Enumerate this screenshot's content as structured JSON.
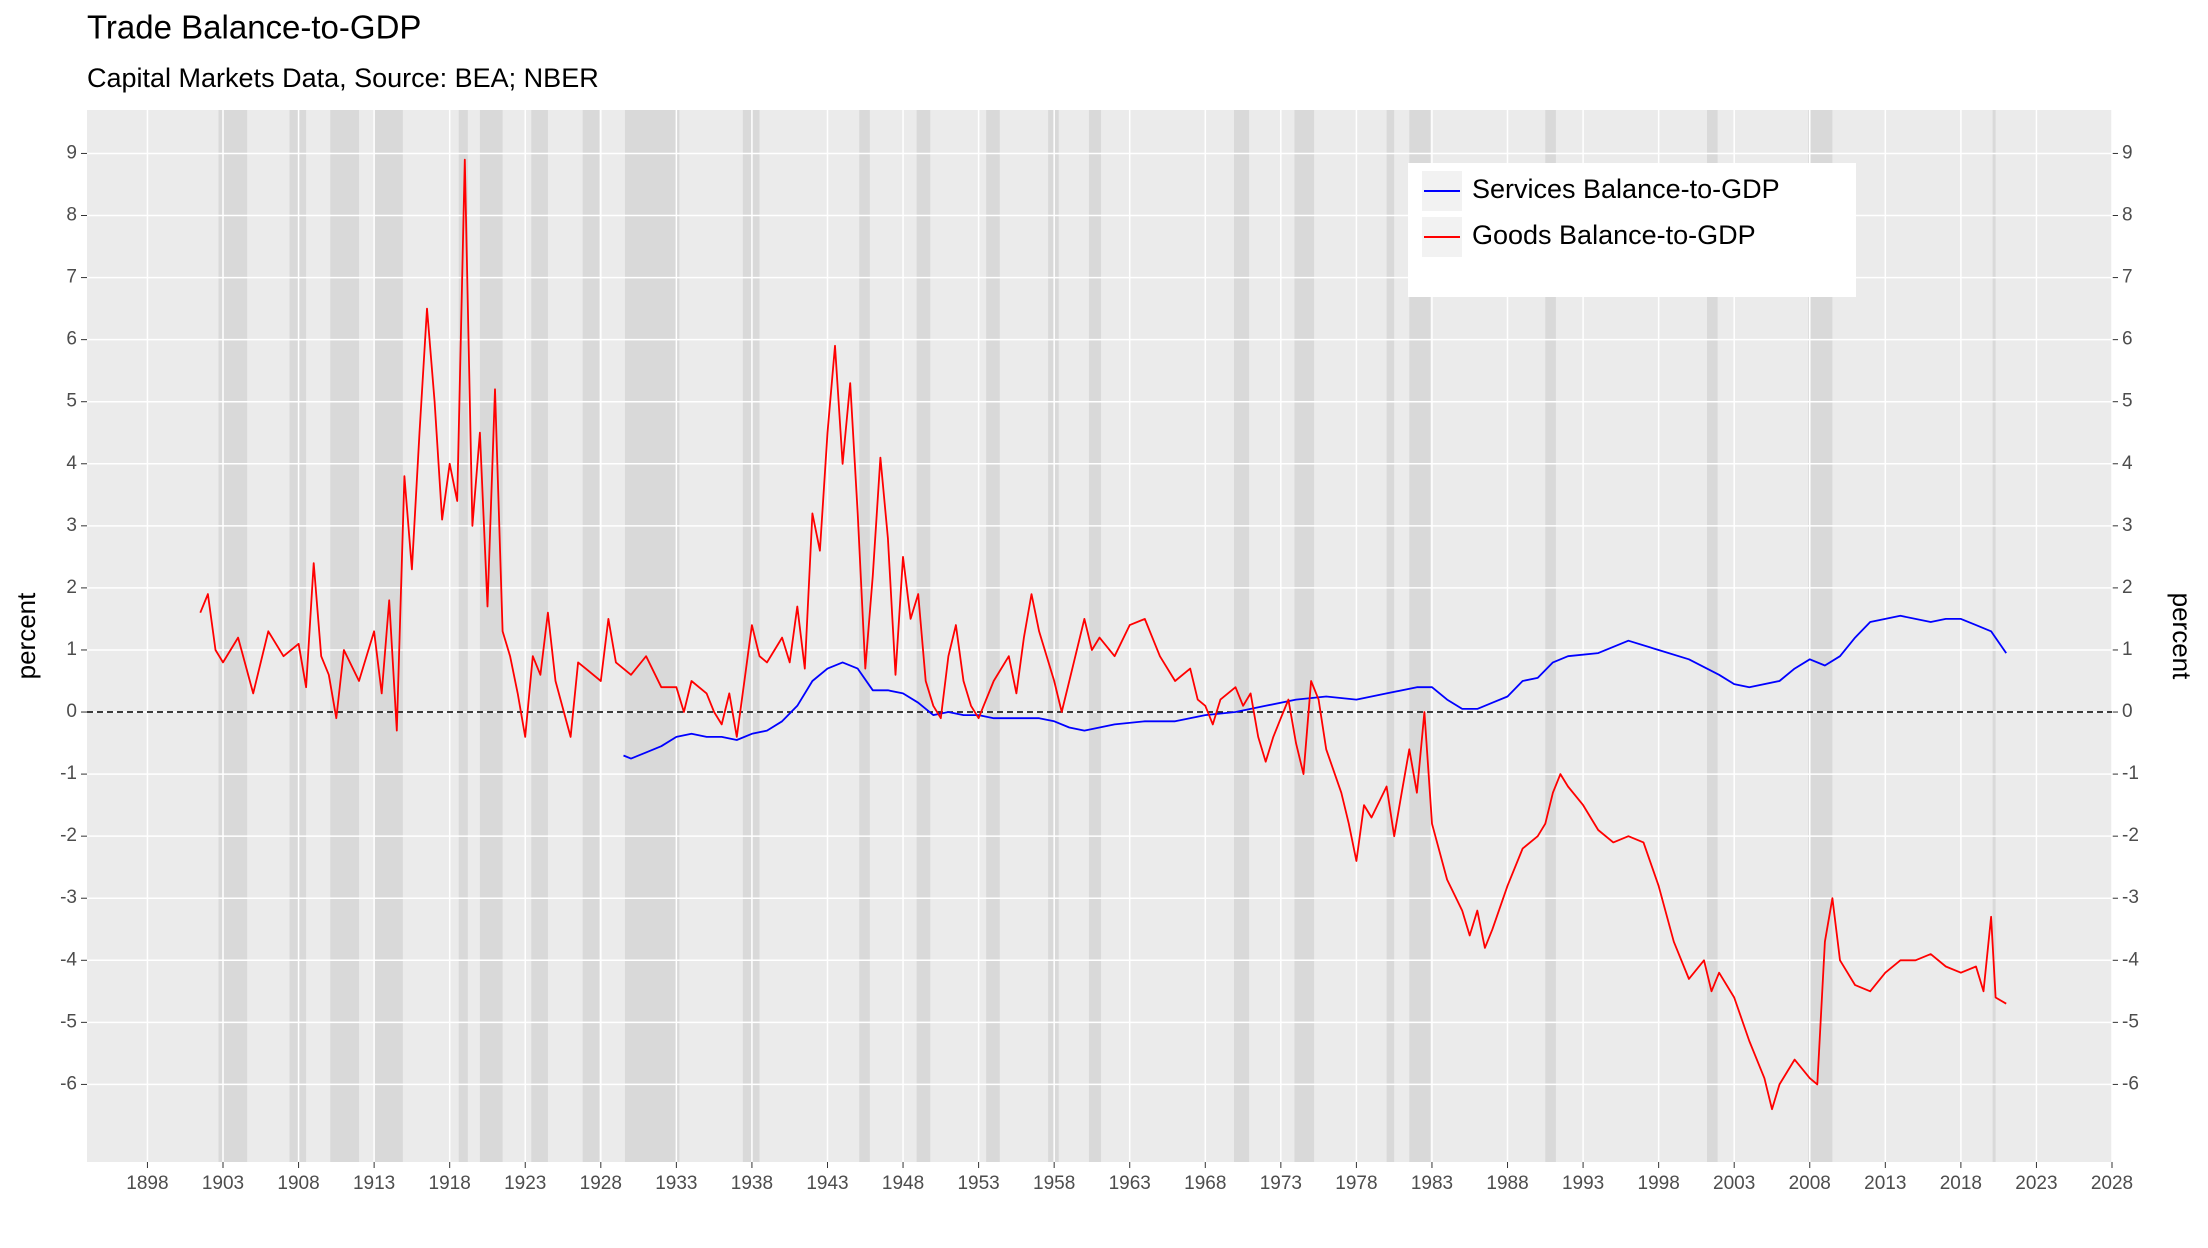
{
  "chart_data": {
    "type": "line",
    "title": "Trade Balance-to-GDP",
    "subtitle": "Capital Markets Data, Source: BEA; NBER",
    "ylabel": "percent",
    "y2label": "percent",
    "xlim": [
      1894,
      2028
    ],
    "xticks": [
      1898,
      1903,
      1908,
      1913,
      1918,
      1923,
      1928,
      1933,
      1938,
      1943,
      1948,
      1953,
      1958,
      1963,
      1968,
      1973,
      1978,
      1983,
      1988,
      1993,
      1998,
      2003,
      2008,
      2013,
      2018,
      2023,
      2028
    ],
    "ylim": [
      -7.25,
      9.7
    ],
    "yticks": [
      -6,
      -5,
      -4,
      -3,
      -2,
      -1,
      0,
      1,
      2,
      3,
      4,
      5,
      6,
      7,
      8,
      9
    ],
    "y2lim": [
      -7.25,
      9.7
    ],
    "y2ticks": [
      -6,
      -5,
      -4,
      -3,
      -2,
      -1,
      0,
      1,
      2,
      3,
      4,
      5,
      6,
      7,
      8,
      9
    ],
    "grid": true,
    "hline": 0,
    "legend": "top-right",
    "recessions": [
      [
        1902.7,
        1904.6
      ],
      [
        1907.4,
        1908.5
      ],
      [
        1910.1,
        1912.0
      ],
      [
        1913.0,
        1914.9
      ],
      [
        1918.6,
        1919.2
      ],
      [
        1920.0,
        1921.5
      ],
      [
        1923.4,
        1924.5
      ],
      [
        1926.8,
        1927.9
      ],
      [
        1929.6,
        1933.2
      ],
      [
        1937.4,
        1938.5
      ],
      [
        1945.1,
        1945.8
      ],
      [
        1948.9,
        1949.8
      ],
      [
        1953.5,
        1954.4
      ],
      [
        1957.6,
        1958.3
      ],
      [
        1960.3,
        1961.1
      ],
      [
        1969.9,
        1970.9
      ],
      [
        1973.9,
        1975.2
      ],
      [
        1980.0,
        1980.5
      ],
      [
        1981.5,
        1982.9
      ],
      [
        1990.5,
        1991.2
      ],
      [
        2001.2,
        2001.9
      ],
      [
        2007.9,
        2009.5
      ],
      [
        2020.1,
        2020.3
      ]
    ],
    "series": [
      {
        "name": "Services Balance-to-GDP",
        "color": "#0000ff",
        "x": [
          1929.5,
          1930,
          1931,
          1932,
          1933,
          1934,
          1935,
          1936,
          1937,
          1938,
          1939,
          1940,
          1941,
          1942,
          1943,
          1944,
          1945,
          1946,
          1947,
          1948,
          1949,
          1950,
          1951,
          1952,
          1953,
          1954,
          1955,
          1957,
          1958,
          1959,
          1960,
          1961,
          1962,
          1964,
          1966,
          1968,
          1970,
          1972,
          1974,
          1976,
          1978,
          1980,
          1982,
          1983,
          1984,
          1985,
          1986,
          1987,
          1988,
          1989,
          1990,
          1991,
          1992,
          1994,
          1996,
          1998,
          2000,
          2002,
          2003,
          2004,
          2006,
          2007,
          2008,
          2009,
          2010,
          2011,
          2012,
          2013,
          2014,
          2016,
          2017,
          2018,
          2019,
          2020,
          2021
        ],
        "values": [
          -0.7,
          -0.75,
          -0.65,
          -0.55,
          -0.4,
          -0.35,
          -0.4,
          -0.4,
          -0.45,
          -0.35,
          -0.3,
          -0.15,
          0.1,
          0.5,
          0.7,
          0.8,
          0.7,
          0.35,
          0.35,
          0.3,
          0.15,
          -0.05,
          0.0,
          -0.05,
          -0.05,
          -0.1,
          -0.1,
          -0.1,
          -0.15,
          -0.25,
          -0.3,
          -0.25,
          -0.2,
          -0.15,
          -0.15,
          -0.05,
          0.0,
          0.1,
          0.2,
          0.25,
          0.2,
          0.3,
          0.4,
          0.4,
          0.2,
          0.05,
          0.05,
          0.15,
          0.25,
          0.5,
          0.55,
          0.8,
          0.9,
          0.95,
          1.15,
          1.0,
          0.85,
          0.6,
          0.45,
          0.4,
          0.5,
          0.7,
          0.85,
          0.75,
          0.9,
          1.2,
          1.45,
          1.5,
          1.55,
          1.45,
          1.5,
          1.5,
          1.4,
          1.3,
          0.95
        ]
      },
      {
        "name": "Goods Balance-to-GDP",
        "color": "#ff0000",
        "x": [
          1901.5,
          1902,
          1902.5,
          1903,
          1904,
          1905,
          1906,
          1907,
          1908,
          1908.5,
          1909,
          1909.5,
          1910,
          1910.5,
          1911,
          1912,
          1913,
          1913.5,
          1914,
          1914.5,
          1915,
          1915.5,
          1916,
          1916.5,
          1917,
          1917.5,
          1918,
          1918.5,
          1919,
          1919.5,
          1920,
          1920.5,
          1921,
          1921.5,
          1922,
          1922.5,
          1923,
          1923.5,
          1924,
          1924.5,
          1925,
          1926,
          1926.5,
          1927,
          1928,
          1928.5,
          1929,
          1930,
          1931,
          1932,
          1933,
          1933.5,
          1934,
          1935,
          1935.5,
          1936,
          1936.5,
          1937,
          1937.5,
          1938,
          1938.5,
          1939,
          1940,
          1940.5,
          1941,
          1941.5,
          1942,
          1942.5,
          1943,
          1943.5,
          1944,
          1944.5,
          1945,
          1945.5,
          1946,
          1946.5,
          1947,
          1947.5,
          1948,
          1948.5,
          1949,
          1949.5,
          1950,
          1950.5,
          1951,
          1951.5,
          1952,
          1952.5,
          1953,
          1954,
          1955,
          1955.5,
          1956,
          1956.5,
          1957,
          1958,
          1958.5,
          1959,
          1960,
          1960.5,
          1961,
          1962,
          1963,
          1964,
          1965,
          1966,
          1967,
          1967.5,
          1968,
          1968.5,
          1969,
          1970,
          1970.5,
          1971,
          1971.5,
          1972,
          1972.5,
          1973,
          1973.5,
          1974,
          1974.5,
          1975,
          1975.5,
          1976,
          1977,
          1977.5,
          1978,
          1978.5,
          1979,
          1980,
          1980.5,
          1981,
          1981.5,
          1982,
          1982.5,
          1983,
          1984,
          1985,
          1985.5,
          1986,
          1986.5,
          1987,
          1988,
          1989,
          1990,
          1990.5,
          1991,
          1991.5,
          1992,
          1993,
          1994,
          1995,
          1996,
          1997,
          1998,
          1999,
          2000,
          2001,
          2001.5,
          2002,
          2003,
          2004,
          2005,
          2005.5,
          2006,
          2007,
          2008,
          2008.5,
          2009,
          2009.5,
          2010,
          2011,
          2012,
          2013,
          2014,
          2015,
          2016,
          2017,
          2018,
          2019,
          2019.5,
          2020,
          2020.3,
          2021
        ],
        "values": [
          1.6,
          1.9,
          1.0,
          0.8,
          1.2,
          0.3,
          1.3,
          0.9,
          1.1,
          0.4,
          2.4,
          0.9,
          0.6,
          -0.1,
          1.0,
          0.5,
          1.3,
          0.3,
          1.8,
          -0.3,
          3.8,
          2.3,
          4.5,
          6.5,
          5.0,
          3.1,
          4.0,
          3.4,
          8.9,
          3.0,
          4.5,
          1.7,
          5.2,
          1.3,
          0.9,
          0.3,
          -0.4,
          0.9,
          0.6,
          1.6,
          0.5,
          -0.4,
          0.8,
          0.7,
          0.5,
          1.5,
          0.8,
          0.6,
          0.9,
          0.4,
          0.4,
          0.0,
          0.5,
          0.3,
          0.0,
          -0.2,
          0.3,
          -0.4,
          0.5,
          1.4,
          0.9,
          0.8,
          1.2,
          0.8,
          1.7,
          0.7,
          3.2,
          2.6,
          4.5,
          5.9,
          4.0,
          5.3,
          3.2,
          0.7,
          2.2,
          4.1,
          2.8,
          0.6,
          2.5,
          1.5,
          1.9,
          0.5,
          0.1,
          -0.1,
          0.9,
          1.4,
          0.5,
          0.1,
          -0.1,
          0.5,
          0.9,
          0.3,
          1.2,
          1.9,
          1.3,
          0.5,
          0.0,
          0.5,
          1.5,
          1.0,
          1.2,
          0.9,
          1.4,
          1.5,
          0.9,
          0.5,
          0.7,
          0.2,
          0.1,
          -0.2,
          0.2,
          0.4,
          0.1,
          0.3,
          -0.4,
          -0.8,
          -0.4,
          -0.1,
          0.2,
          -0.5,
          -1.0,
          0.5,
          0.2,
          -0.6,
          -1.3,
          -1.8,
          -2.4,
          -1.5,
          -1.7,
          -1.2,
          -2.0,
          -1.3,
          -0.6,
          -1.3,
          0.0,
          -1.8,
          -2.7,
          -3.2,
          -3.6,
          -3.2,
          -3.8,
          -3.5,
          -2.8,
          -2.2,
          -2.0,
          -1.8,
          -1.3,
          -1.0,
          -1.2,
          -1.5,
          -1.9,
          -2.1,
          -2.0,
          -2.1,
          -2.8,
          -3.7,
          -4.3,
          -4.0,
          -4.5,
          -4.2,
          -4.6,
          -5.3,
          -5.9,
          -6.4,
          -6.0,
          -5.6,
          -5.9,
          -6.0,
          -3.7,
          -3.0,
          -4.0,
          -4.4,
          -4.5,
          -4.2,
          -4.0,
          -4.0,
          -3.9,
          -4.1,
          -4.2,
          -4.1,
          -4.5,
          -3.3,
          -4.6,
          -4.7
        ]
      }
    ]
  }
}
